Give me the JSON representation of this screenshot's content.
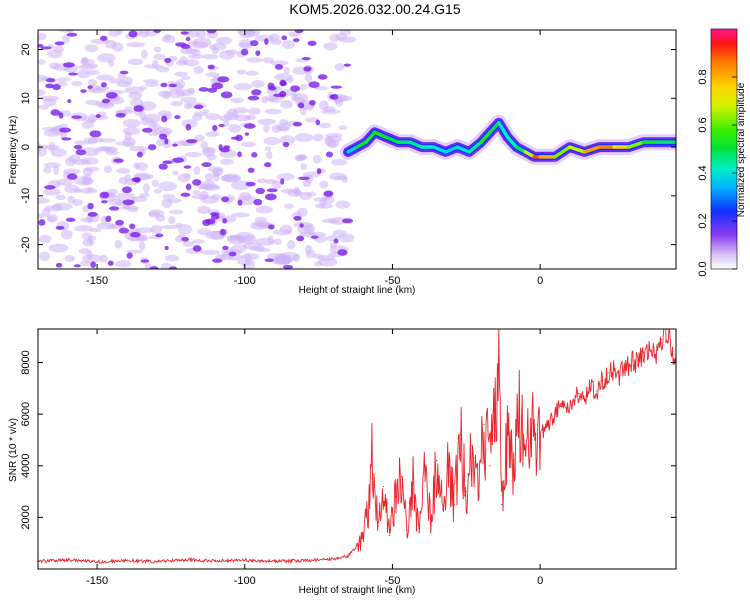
{
  "title": "KOM5.2026.032.00.24.G15",
  "colors": {
    "signal": "#e8262b",
    "frame": "#000000",
    "noise": "#7b1fe8"
  },
  "chart_data": [
    {
      "type": "heatmap",
      "xlabel": "Height of straight line (km)",
      "ylabel": "Frequency (Hz)",
      "xlim": [
        -170,
        46
      ],
      "ylim": [
        -25,
        24
      ],
      "x_ticks": [
        -150,
        -100,
        -50,
        0
      ],
      "y_ticks": [
        -20,
        -10,
        0,
        10,
        20
      ],
      "colorbar": {
        "label": "Normalized spectral amplitude",
        "range": [
          0.0,
          1.0
        ],
        "ticks": [
          0.0,
          0.2,
          0.4,
          0.6,
          0.8
        ]
      },
      "ridge": {
        "x": [
          -65,
          -62,
          -59,
          -56,
          -52,
          -48,
          -44,
          -40,
          -36,
          -32,
          -28,
          -24,
          -20,
          -17,
          -14,
          -11,
          -8,
          -5,
          -2,
          0,
          5,
          10,
          15,
          20,
          25,
          30,
          35,
          40,
          46
        ],
        "frequency": [
          -1,
          0,
          1,
          3,
          2,
          1,
          1,
          0,
          0,
          -1,
          0,
          -1,
          1,
          3,
          5,
          2,
          0,
          -1,
          -2,
          -2,
          -2,
          0,
          -1,
          0,
          0,
          0,
          1,
          1,
          1
        ],
        "amplitude": [
          0.3,
          0.45,
          0.55,
          0.5,
          0.55,
          0.45,
          0.5,
          0.4,
          0.45,
          0.35,
          0.4,
          0.4,
          0.5,
          0.55,
          0.45,
          0.4,
          0.45,
          0.5,
          0.85,
          0.95,
          0.65,
          0.6,
          0.75,
          0.9,
          0.8,
          0.7,
          0.55,
          0.5,
          0.45
        ]
      },
      "noise_region": {
        "x_range": [
          -170,
          -65
        ],
        "amplitude": 0.05
      }
    },
    {
      "type": "line",
      "series": [
        {
          "name": "SNR",
          "x": [
            -170,
            -160,
            -150,
            -140,
            -130,
            -120,
            -110,
            -100,
            -90,
            -80,
            -70,
            -65,
            -62,
            -60,
            -58,
            -57,
            -55,
            -53,
            -51,
            -49,
            -47,
            -45,
            -43,
            -41,
            -39,
            -37,
            -35,
            -33,
            -31,
            -29,
            -27,
            -25,
            -23,
            -21,
            -19,
            -17,
            -15,
            -14,
            -13,
            -11,
            -9,
            -7,
            -5,
            -3,
            -1,
            1,
            3,
            5,
            7,
            9,
            11,
            13,
            15,
            17,
            19,
            21,
            23,
            25,
            27,
            29,
            31,
            33,
            35,
            37,
            39,
            41,
            43,
            45
          ],
          "y": [
            300,
            350,
            280,
            330,
            290,
            360,
            310,
            340,
            300,
            320,
            380,
            500,
            900,
            1200,
            2500,
            4700,
            1800,
            3200,
            1300,
            2800,
            3600,
            1500,
            3300,
            1400,
            3900,
            2000,
            4200,
            2300,
            4000,
            2500,
            5200,
            3000,
            4800,
            3300,
            5600,
            4000,
            6400,
            8500,
            2500,
            5300,
            4200,
            5800,
            4400,
            5100,
            5200,
            5300,
            5600,
            6000,
            6300,
            6100,
            6500,
            6800,
            6600,
            7000,
            6900,
            7300,
            7600,
            7700,
            7500,
            7800,
            8100,
            7900,
            8400,
            8500,
            8300,
            8900,
            9300,
            8100
          ]
        }
      ],
      "xlabel": "Height of straight line (km)",
      "ylabel": "SNR (10 * v/v)",
      "xlim": [
        -170,
        46
      ],
      "ylim": [
        0,
        9300
      ],
      "x_ticks": [
        -150,
        -100,
        -50,
        0
      ],
      "y_ticks": [
        2000,
        4000,
        6000,
        8000
      ]
    }
  ]
}
